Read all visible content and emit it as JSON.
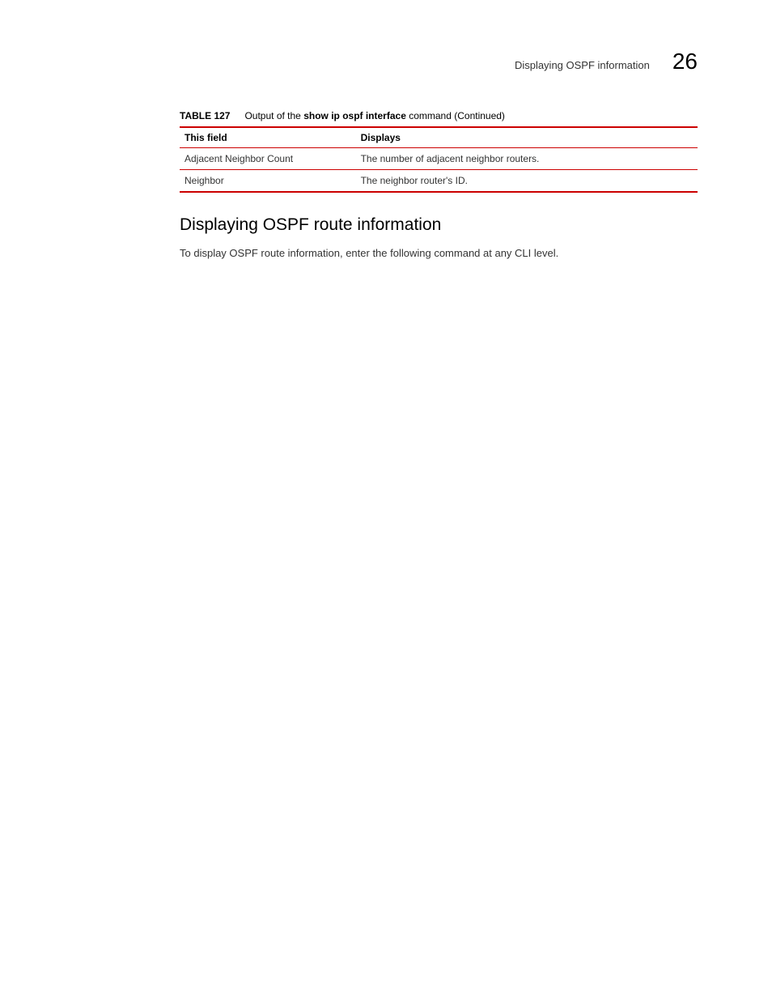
{
  "header": {
    "title": "Displaying OSPF information",
    "chapter_number": "26"
  },
  "table": {
    "label": "TABLE 127",
    "caption_prefix": "Output of the ",
    "caption_bold": "show ip ospf interface",
    "caption_suffix": " command (Continued)",
    "columns": [
      "This field",
      "Displays"
    ],
    "rows": [
      [
        "Adjacent Neighbor Count",
        "The number of adjacent neighbor routers."
      ],
      [
        "Neighbor",
        "The neighbor router's ID."
      ]
    ]
  },
  "section": {
    "heading": "Displaying OSPF route information",
    "body": "To display OSPF route information, enter the following command at any CLI level."
  },
  "colors": {
    "rule": "#cc0000",
    "text": "#333333",
    "background": "#ffffff"
  }
}
